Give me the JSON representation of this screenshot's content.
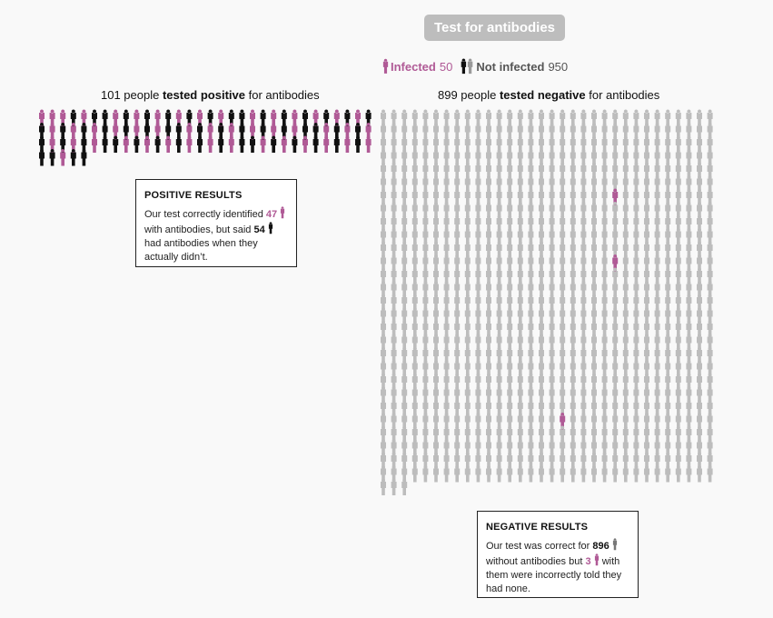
{
  "title": "Test for antibodies",
  "legend": {
    "infected": {
      "label": "Infected",
      "count": "50",
      "color": "#b05a96",
      "icon": "person-icon"
    },
    "not_infected": {
      "label": "Not infected",
      "count": "950",
      "color": "#111111",
      "icon": "person-pair-icon"
    }
  },
  "positive": {
    "heading_pre": "101 people ",
    "heading_bold": "tested positive",
    "heading_post": " for antibodies",
    "total": 101,
    "infected": 47,
    "not_infected": 54,
    "box": {
      "title": "POSITIVE RESULTS",
      "t1": "Our test correctly identified ",
      "n1": "47",
      "t2": " with antibodies, but said ",
      "n2": "54",
      "t3": " had antibodies when they actually didn’t."
    }
  },
  "negative": {
    "heading_pre": "899 people ",
    "heading_bold": "tested negative",
    "heading_post": " for antibodies",
    "total": 899,
    "infected": 3,
    "not_infected": 896,
    "box": {
      "title": "NEGATIVE RESULTS",
      "t1": "Our test was correct for ",
      "n1": "896",
      "t2": " without antibodies but ",
      "n2": "3",
      "t3": " with them were incorrectly told they had none."
    }
  },
  "colors": {
    "infected": "#b05a96",
    "not_infected_positive": "#111111",
    "not_infected_negative": "#bdbdbd"
  }
}
